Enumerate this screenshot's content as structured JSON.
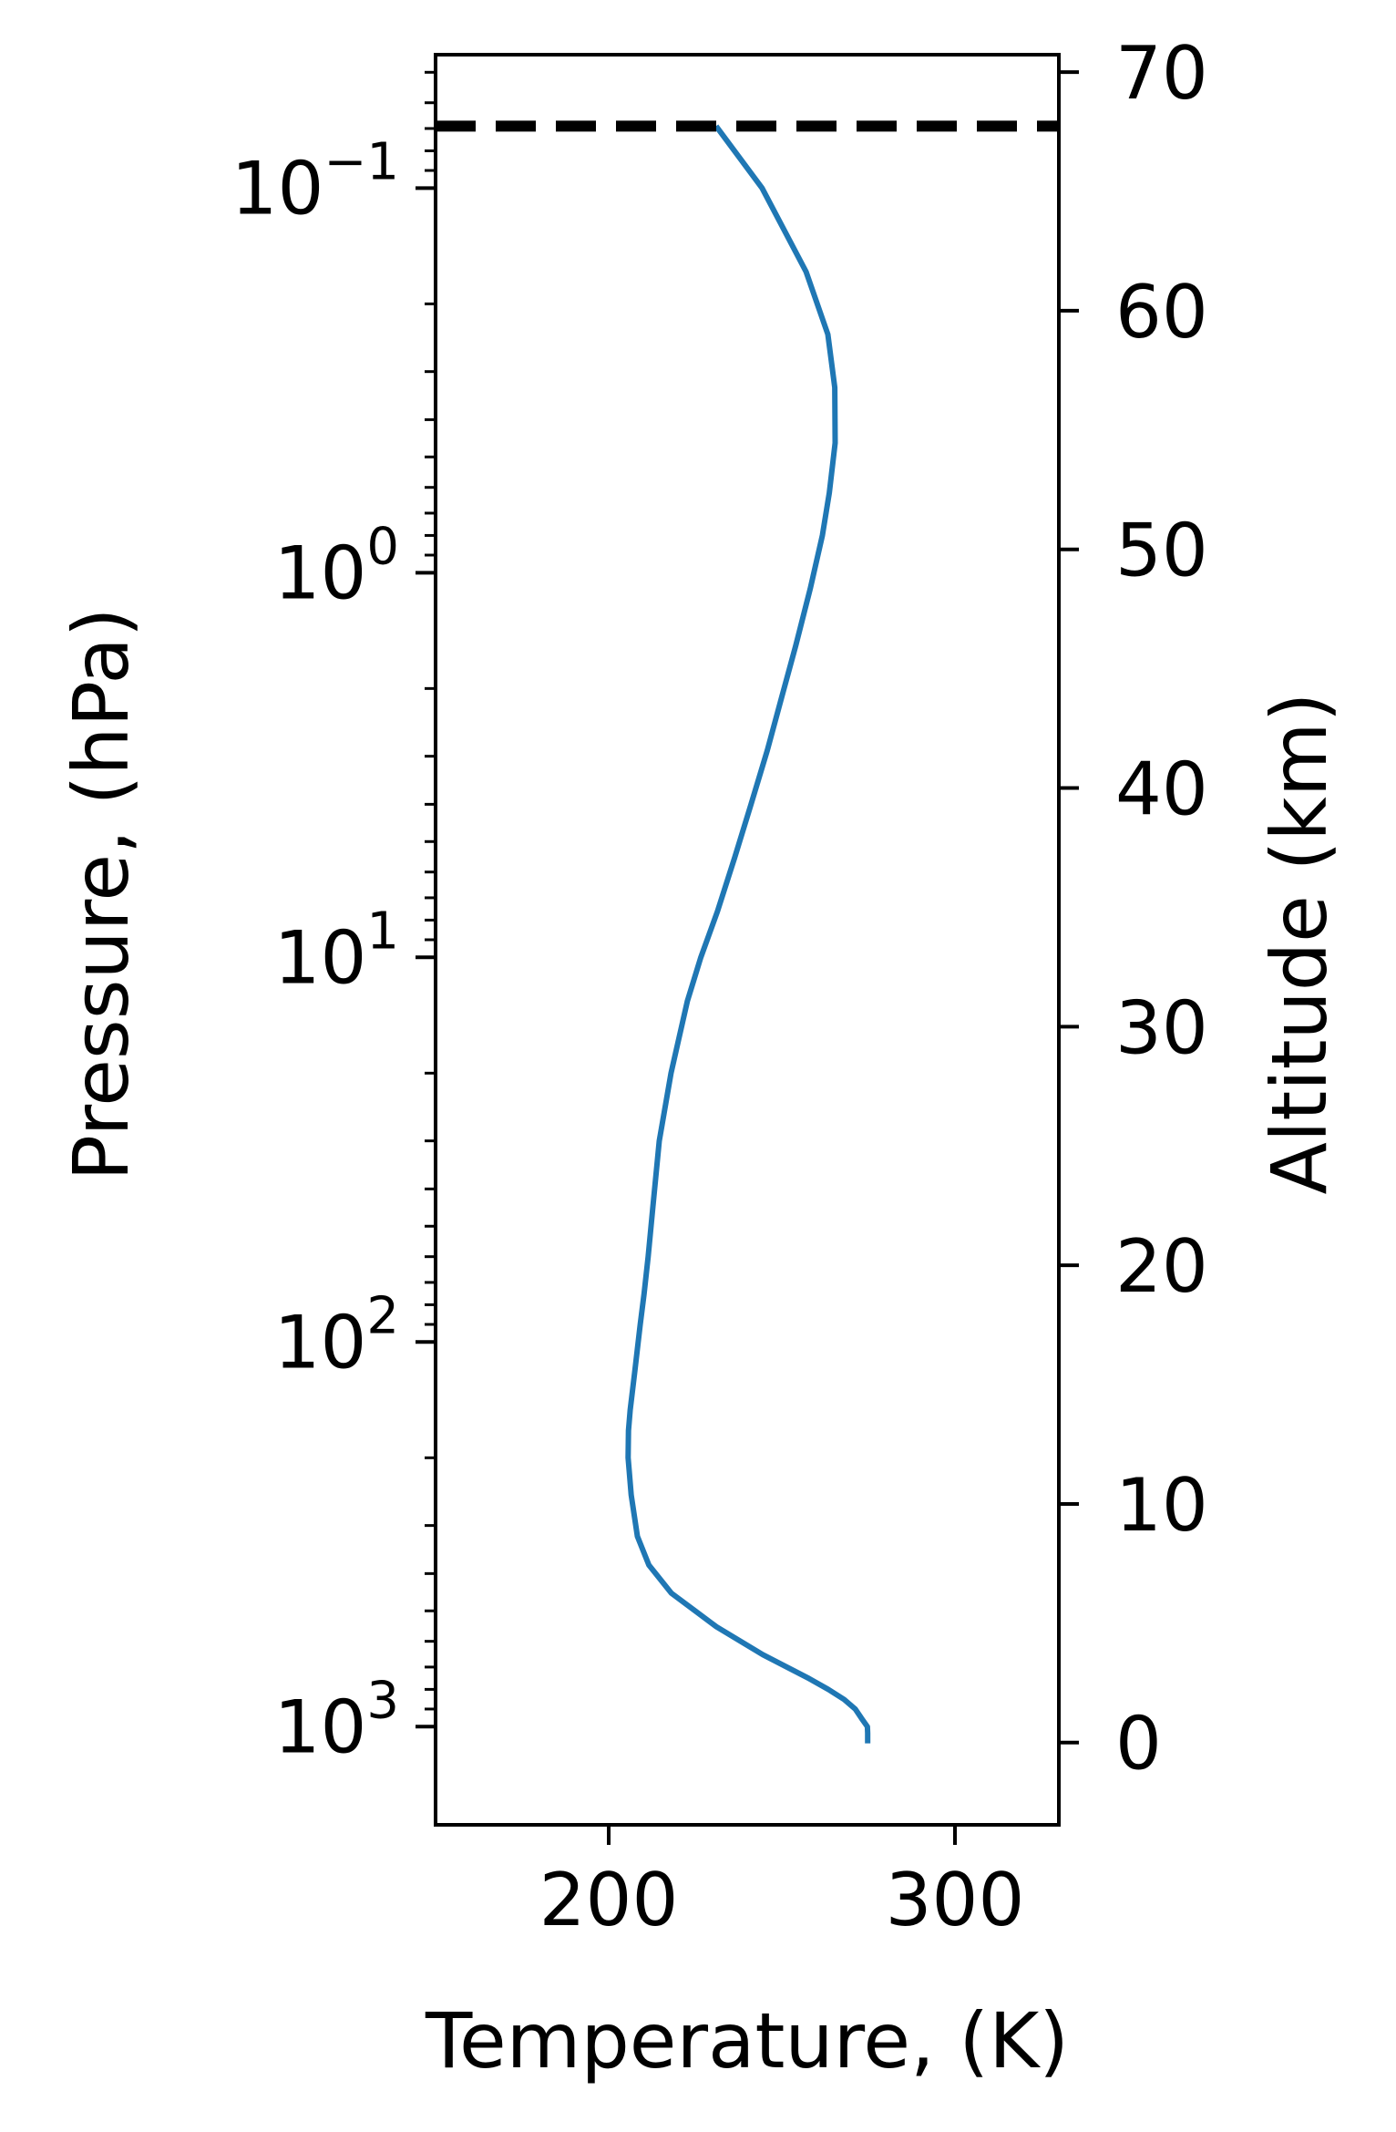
{
  "chart_data": {
    "type": "line",
    "xlabel": "Temperature, (K)",
    "ylabel": "Pressure, (hPa)",
    "y2label": "Altitude (km)",
    "xlim": [
      150,
      330
    ],
    "ylim": [
      1800,
      0.045
    ],
    "y_scale": "log",
    "y_inverted": true,
    "x_ticks": [
      {
        "value": 200,
        "label": "200"
      },
      {
        "value": 300,
        "label": "300"
      }
    ],
    "y_ticks": [
      {
        "value": 0.1,
        "base": "10",
        "exp": "−1"
      },
      {
        "value": 1,
        "base": "10",
        "exp": "0"
      },
      {
        "value": 10,
        "base": "10",
        "exp": "1"
      },
      {
        "value": 100,
        "base": "10",
        "exp": "2"
      },
      {
        "value": 1000,
        "base": "10",
        "exp": "3"
      }
    ],
    "y2_ticks": [
      {
        "value": 0,
        "label": "0"
      },
      {
        "value": 10,
        "label": "10"
      },
      {
        "value": 20,
        "label": "20"
      },
      {
        "value": 30,
        "label": "30"
      },
      {
        "value": 40,
        "label": "40"
      },
      {
        "value": 50,
        "label": "50"
      },
      {
        "value": 60,
        "label": "60"
      },
      {
        "value": 70,
        "label": "70"
      }
    ],
    "y2_scale_height_km": 7.0,
    "y2_surface_pressure": 1100,
    "series": [
      {
        "color": "#1f77b4",
        "x": [
          274.8,
          274.8,
          274.7,
          273.0,
          271.2,
          268.0,
          263.4,
          257.9,
          244.5,
          231.1,
          218.1,
          211.6,
          208.3,
          206.5,
          205.6,
          205.7,
          206.2,
          207.5,
          209.1,
          210.2,
          211.4,
          212.7,
          214.6,
          218.0,
          222.7,
          226.6,
          231.4,
          236.4,
          241.1,
          245.8,
          250.0,
          254.0,
          258.2,
          261.7,
          263.7,
          265.4,
          265.3,
          263.3,
          257.0,
          244.3,
          231.0
        ],
        "y": [
          1105,
          1040,
          1000,
          951,
          900,
          850,
          800,
          750,
          650,
          550,
          450,
          380,
          320,
          250,
          200,
          170,
          150,
          120,
          90,
          75,
          60,
          45,
          30,
          20,
          13,
          10,
          7.6,
          5.5,
          4.0,
          2.9,
          2.1,
          1.55,
          1.1,
          0.8,
          0.62,
          0.46,
          0.33,
          0.24,
          0.165,
          0.1,
          0.069
        ]
      }
    ],
    "reference_lines": [
      {
        "orientation": "horizontal",
        "y": 0.069,
        "style": "dashed",
        "color": "#000000"
      }
    ],
    "legend": "none",
    "grid": false
  }
}
